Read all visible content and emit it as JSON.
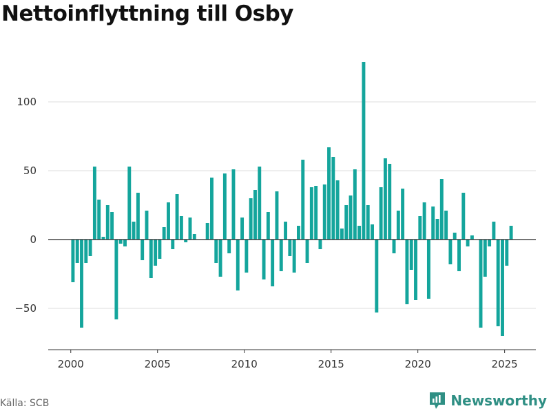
{
  "title": "Nettoinflyttning till Osby",
  "source": "Källa: SCB",
  "brand": {
    "name": "Newsworthy",
    "icon": "newsworthy-logo-icon"
  },
  "colors": {
    "bar": "#14a59c",
    "grid": "#dddddd",
    "zero_line": "#222222",
    "axis": "#333333",
    "brand": "#2f8f84"
  },
  "chart_data": {
    "type": "bar",
    "title": "Nettoinflyttning till Osby",
    "xlabel": "",
    "ylabel": "",
    "xlim": [
      1998.7,
      2026.8
    ],
    "ylim": [
      -80,
      135
    ],
    "yticks": [
      -50,
      0,
      50,
      100
    ],
    "xticks": [
      2000,
      2005,
      2010,
      2015,
      2020,
      2025
    ],
    "ytick_labels": [
      "−50",
      "0",
      "50",
      "100"
    ],
    "xtick_labels": [
      "2000",
      "2005",
      "2010",
      "2015",
      "2020",
      "2025"
    ],
    "grid": true,
    "x_start": 2000.125,
    "x_step": 0.25,
    "values": [
      -31,
      -17,
      -64,
      -17,
      -12,
      53,
      29,
      2,
      25,
      20,
      -58,
      -3,
      -5,
      53,
      13,
      34,
      -15,
      21,
      -28,
      -19,
      -14,
      9,
      27,
      -7,
      33,
      17,
      -2,
      16,
      4,
      0,
      0,
      12,
      45,
      -17,
      -27,
      48,
      -10,
      51,
      -37,
      16,
      -24,
      30,
      36,
      53,
      -29,
      20,
      -34,
      35,
      -23,
      13,
      -12,
      -24,
      10,
      58,
      -17,
      38,
      39,
      -7,
      40,
      67,
      60,
      43,
      8,
      25,
      32,
      51,
      10,
      129,
      25,
      11,
      -53,
      38,
      59,
      55,
      -10,
      21,
      37,
      -47,
      -22,
      -44,
      17,
      27,
      -43,
      24,
      15,
      44,
      21,
      -18,
      5,
      -23,
      34,
      -5,
      3,
      0,
      -64,
      -27,
      -5,
      13,
      -63,
      -70,
      -19,
      10
    ]
  }
}
